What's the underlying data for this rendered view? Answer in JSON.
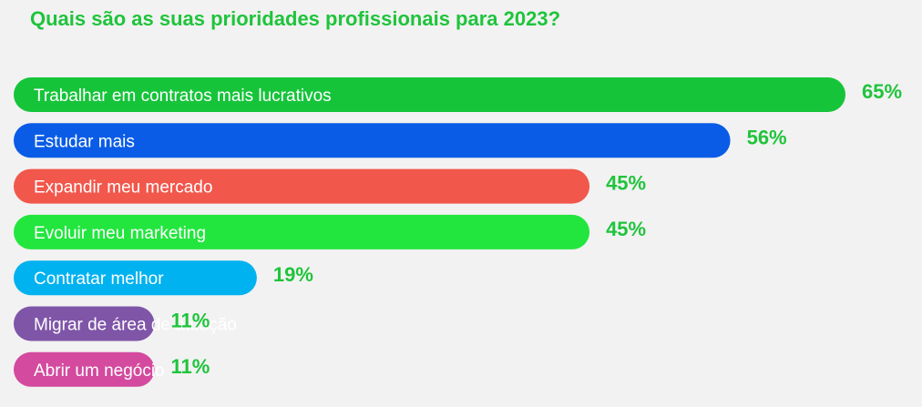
{
  "chart_data": {
    "type": "bar",
    "orientation": "horizontal",
    "title": "Quais são as suas prioridades profissionais para 2023?",
    "categories": [
      "Trabalhar em contratos mais lucrativos",
      "Estudar mais",
      "Expandir meu mercado",
      "Evoluir meu marketing",
      "Contratar melhor",
      "Migrar de área de atuação",
      "Abrir um negócio"
    ],
    "values": [
      65,
      56,
      45,
      45,
      19,
      11,
      11
    ],
    "value_labels": [
      "65%",
      "56%",
      "45%",
      "45%",
      "19%",
      "11%",
      "11%"
    ],
    "bar_colors": [
      "#16c43a",
      "#0a5ce6",
      "#f2574c",
      "#22e63e",
      "#00b2ef",
      "#7f55a8",
      "#d34a9e"
    ],
    "value_label_color": "#1fc43b",
    "title_color": "#1fc43b",
    "xlim": [
      0,
      65
    ],
    "grid": false,
    "legend": "none"
  }
}
